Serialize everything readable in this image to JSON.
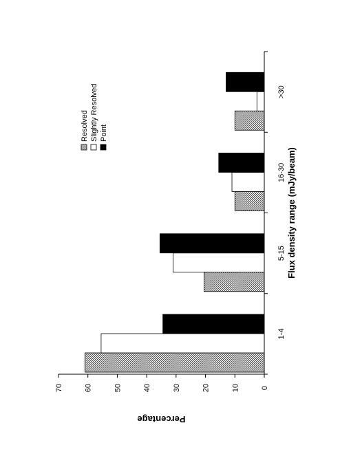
{
  "chart_data": {
    "type": "bar",
    "orientation": "rotated-90",
    "categories": [
      "1-4",
      "5-15",
      "16-30",
      ">30"
    ],
    "series": [
      {
        "name": "Resolved",
        "values": [
          61,
          20.5,
          10,
          10
        ],
        "fill": "dotted-gray"
      },
      {
        "name": "Slightly Resolved",
        "values": [
          55.5,
          31,
          11,
          2.5
        ],
        "fill": "#ffffff"
      },
      {
        "name": "Point",
        "values": [
          34.5,
          35.5,
          15.5,
          13
        ],
        "fill": "#000000"
      }
    ],
    "xlabel": "Flux density range (mJy/beam)",
    "ylabel": "Percentage",
    "ylim": [
      0,
      70
    ],
    "yticks": [
      0,
      10,
      20,
      30,
      40,
      50,
      60,
      70
    ],
    "grid": false,
    "legend_position": "top-right"
  }
}
